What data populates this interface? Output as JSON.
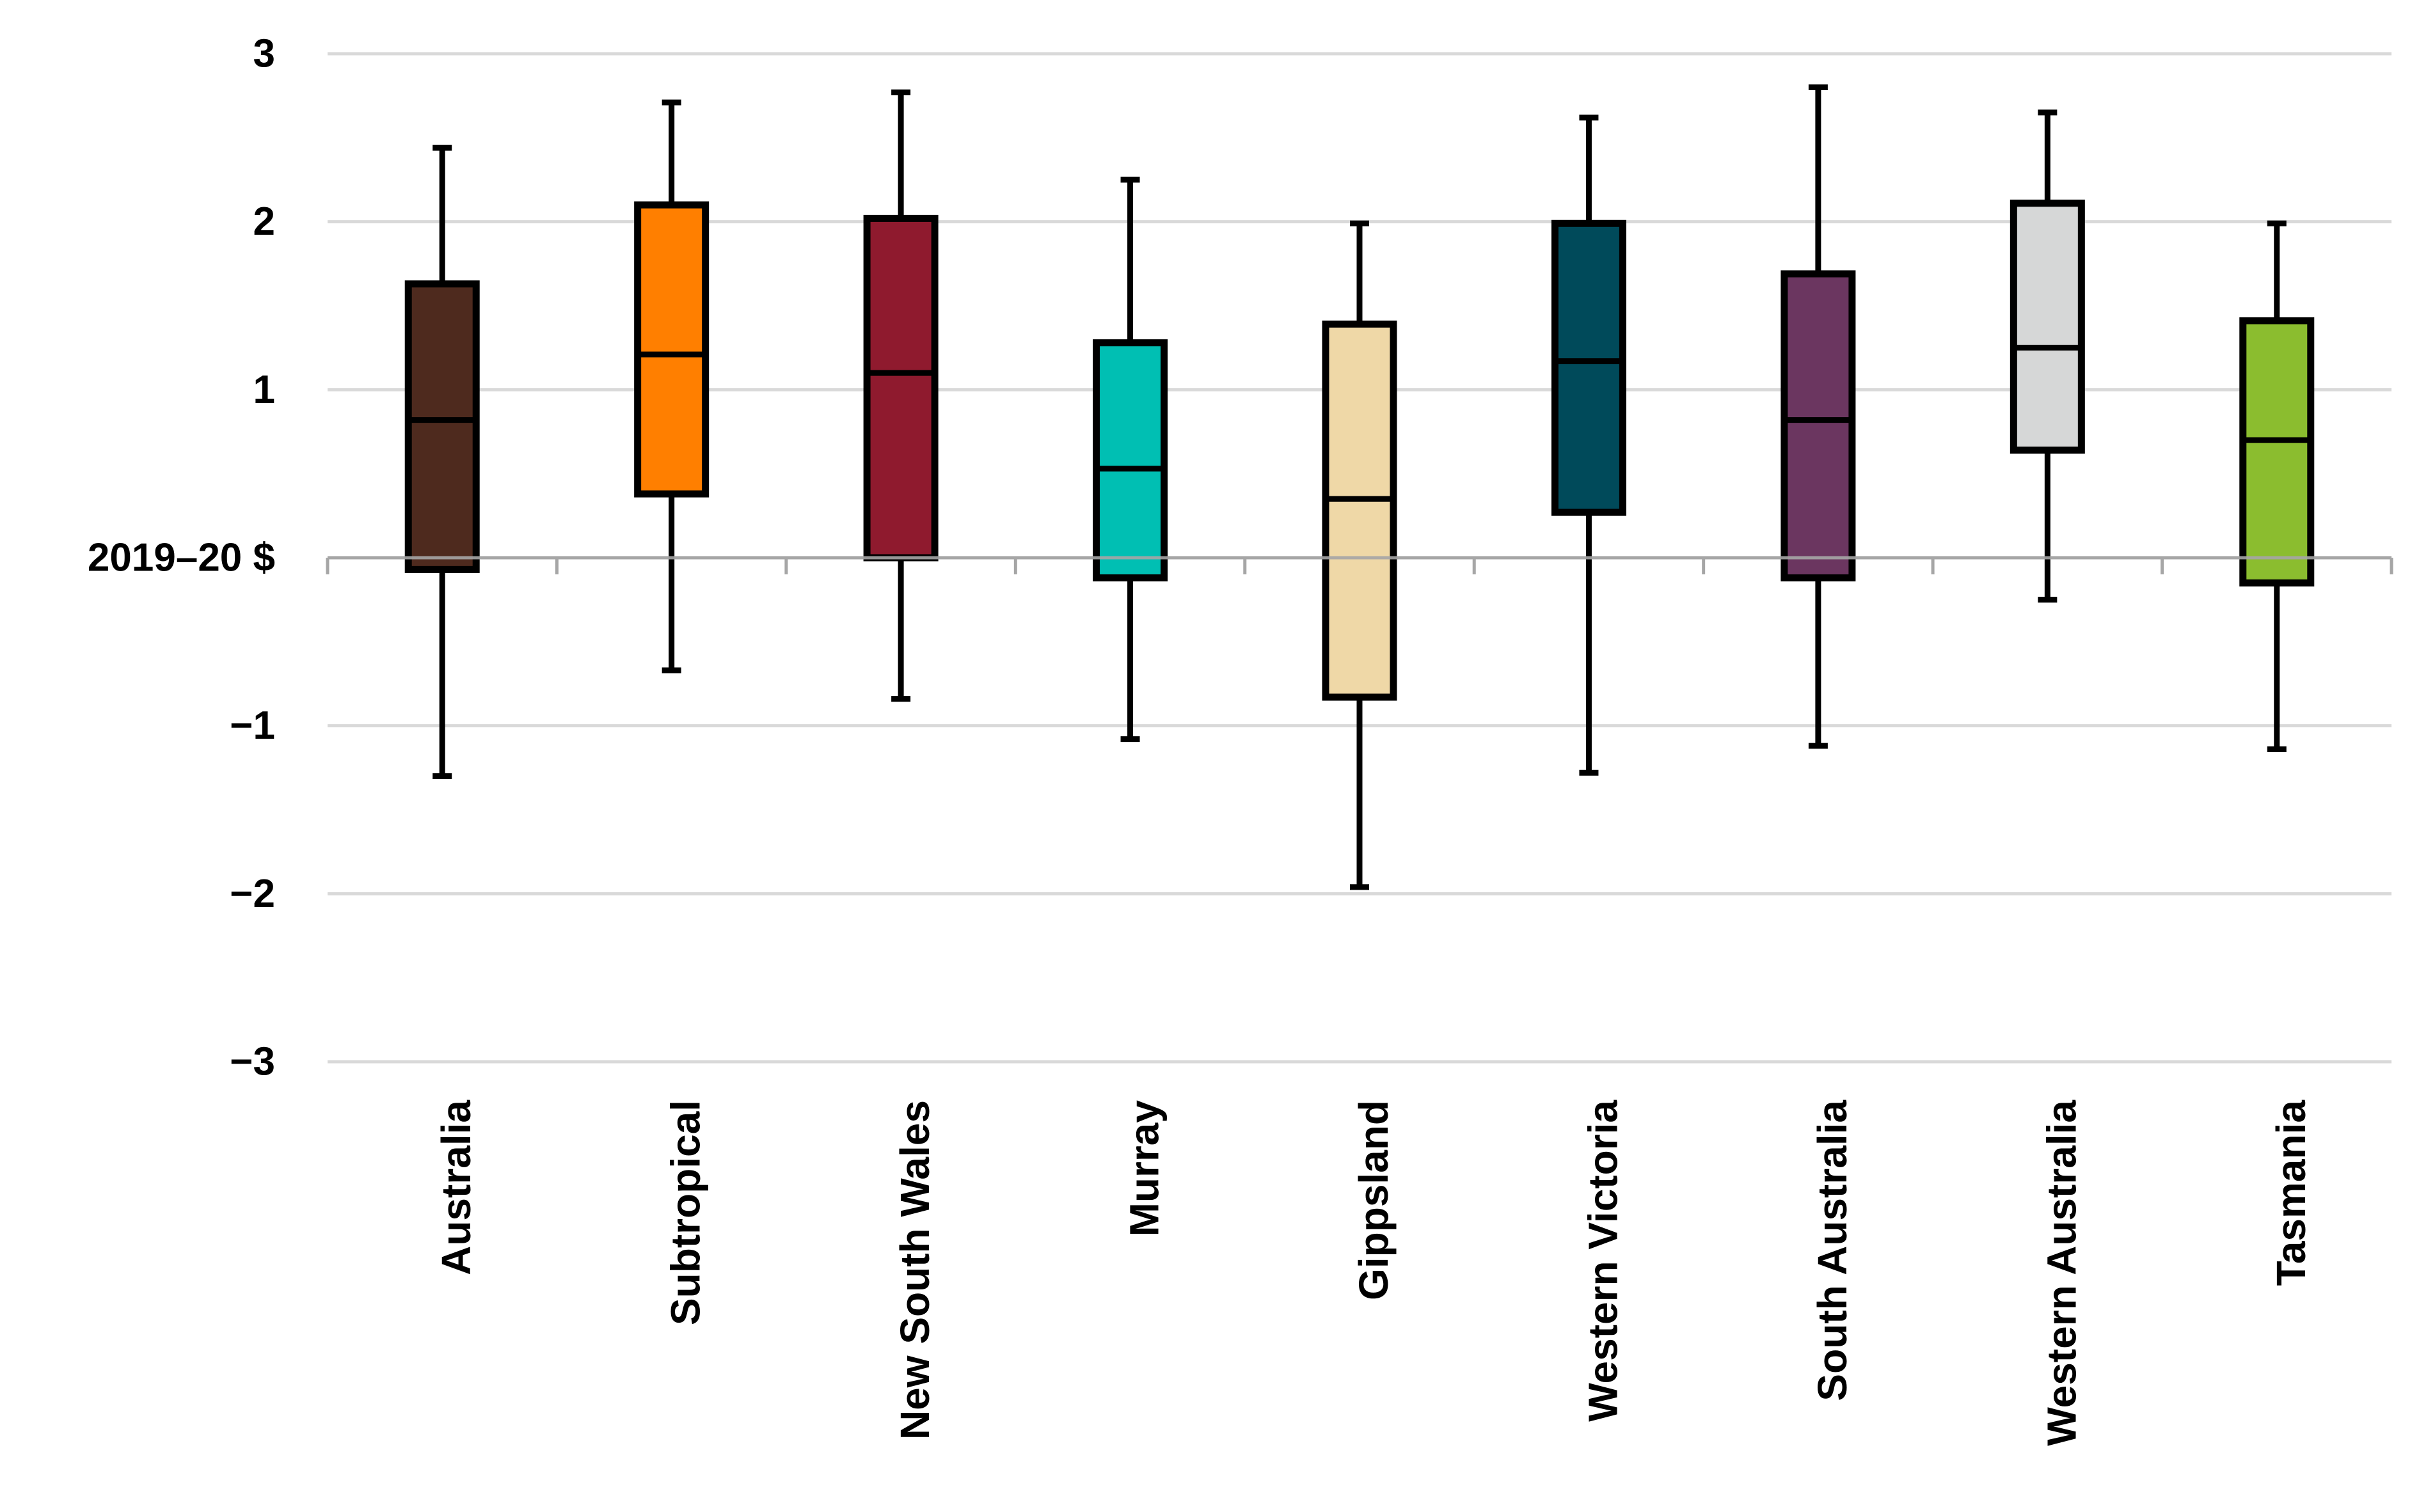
{
  "chart_data": {
    "type": "box",
    "title": "",
    "xlabel": "",
    "ylabel": "",
    "ylim": [
      -3,
      3
    ],
    "yticks": [
      3,
      2,
      1,
      0,
      -1,
      -2,
      -3
    ],
    "ytick_labels": [
      "3",
      "2",
      "1",
      "2019–20 $",
      "−1",
      "−2",
      "−3"
    ],
    "grid": true,
    "baseline": 0,
    "categories": [
      "Australia",
      "Subtropical",
      "New South Wales",
      "Murray",
      "Gippsland",
      "Western Victoria",
      "South Australia",
      "Western Australia",
      "Tasmania"
    ],
    "boxes": [
      {
        "category": "Australia",
        "min": -1.3,
        "q1": -0.07,
        "median": 0.82,
        "q3": 1.63,
        "max": 2.44,
        "color": "#4e2a1e"
      },
      {
        "category": "Subtropical",
        "min": -0.67,
        "q1": 0.38,
        "median": 1.21,
        "q3": 2.1,
        "max": 2.71,
        "color": "#ff7f00"
      },
      {
        "category": "New South Wales",
        "min": -0.84,
        "q1": 0.0,
        "median": 1.1,
        "q3": 2.02,
        "max": 2.77,
        "color": "#8f1a2e"
      },
      {
        "category": "Murray",
        "min": -1.08,
        "q1": -0.12,
        "median": 0.53,
        "q3": 1.28,
        "max": 2.25,
        "color": "#00bfb3"
      },
      {
        "category": "Gippsland",
        "min": -1.96,
        "q1": -0.83,
        "median": 0.35,
        "q3": 1.39,
        "max": 1.99,
        "color": "#efd8a7"
      },
      {
        "category": "Western Victoria",
        "min": -1.28,
        "q1": 0.27,
        "median": 1.17,
        "q3": 1.99,
        "max": 2.62,
        "color": "#004a5a"
      },
      {
        "category": "South Australia",
        "min": -1.12,
        "q1": -0.12,
        "median": 0.82,
        "q3": 1.69,
        "max": 2.8,
        "color": "#6b3660"
      },
      {
        "category": "Western Australia",
        "min": -0.25,
        "q1": 0.64,
        "median": 1.25,
        "q3": 2.11,
        "max": 2.65,
        "color": "#d6d7d7"
      },
      {
        "category": "Tasmania",
        "min": -1.14,
        "q1": -0.15,
        "median": 0.7,
        "q3": 1.41,
        "max": 1.99,
        "color": "#8bbd2f"
      }
    ]
  }
}
